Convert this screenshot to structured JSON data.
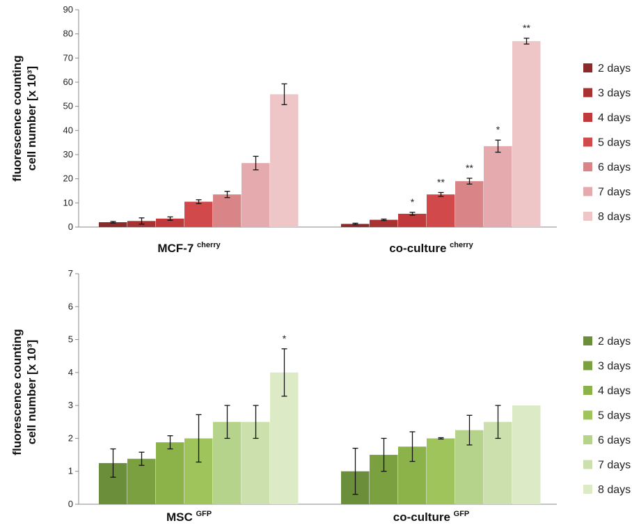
{
  "chart_data": [
    {
      "type": "bar",
      "ylabel_line1": "fluorescence counting",
      "ylabel_line2": "cell number [x 10³]",
      "ylim": [
        0,
        90
      ],
      "yticks": [
        "0",
        "10",
        "20",
        "30",
        "40",
        "50",
        "60",
        "70",
        "80",
        "90"
      ],
      "groups": [
        {
          "label": "MCF-7",
          "sup": "cherry"
        },
        {
          "label": "co-culture",
          "sup": "cherry"
        }
      ],
      "series": [
        {
          "name": "2 days",
          "color": "#8b2a2a",
          "values": [
            2.0,
            1.3
          ],
          "errors": [
            0.3,
            0.3
          ],
          "significance": [
            "",
            ""
          ]
        },
        {
          "name": "3 days",
          "color": "#a83232",
          "values": [
            2.5,
            3.0
          ],
          "errors": [
            1.3,
            0.3
          ],
          "significance": [
            "",
            ""
          ]
        },
        {
          "name": "4 days",
          "color": "#c0393b",
          "values": [
            3.5,
            5.5
          ],
          "errors": [
            0.7,
            0.6
          ],
          "significance": [
            "",
            "*"
          ]
        },
        {
          "name": "5 days",
          "color": "#d2494b",
          "values": [
            10.5,
            13.5
          ],
          "errors": [
            0.8,
            0.8
          ],
          "significance": [
            "",
            "**"
          ]
        },
        {
          "name": "6 days",
          "color": "#d98588",
          "values": [
            13.5,
            19.0
          ],
          "errors": [
            1.3,
            1.2
          ],
          "significance": [
            "",
            "**"
          ]
        },
        {
          "name": "7 days",
          "color": "#e4aaad",
          "values": [
            26.5,
            33.5
          ],
          "errors": [
            2.8,
            2.5
          ],
          "significance": [
            "",
            "*"
          ]
        },
        {
          "name": "8 days",
          "color": "#efc6c7",
          "values": [
            55.0,
            77.0
          ],
          "errors": [
            4.3,
            1.2
          ],
          "significance": [
            "",
            "**"
          ]
        }
      ],
      "grid": false,
      "legend_position": "right"
    },
    {
      "type": "bar",
      "ylabel_line1": "fluorescence counting",
      "ylabel_line2": "cell number [x 10³]",
      "ylim": [
        0,
        7
      ],
      "yticks": [
        "0",
        "1",
        "2",
        "3",
        "4",
        "5",
        "6",
        "7"
      ],
      "groups": [
        {
          "label": "MSC",
          "sup": "GFP"
        },
        {
          "label": "co-culture",
          "sup": "GFP"
        }
      ],
      "series": [
        {
          "name": "2 days",
          "color": "#6b8e3a",
          "values": [
            1.25,
            1.0
          ],
          "errors": [
            0.43,
            0.7
          ],
          "significance": [
            "",
            ""
          ]
        },
        {
          "name": "3 days",
          "color": "#7aa03f",
          "values": [
            1.38,
            1.5
          ],
          "errors": [
            0.2,
            0.5
          ],
          "significance": [
            "",
            ""
          ]
        },
        {
          "name": "4 days",
          "color": "#8cb34a",
          "values": [
            1.88,
            1.75
          ],
          "errors": [
            0.2,
            0.45
          ],
          "significance": [
            "",
            ""
          ]
        },
        {
          "name": "5 days",
          "color": "#a0c45c",
          "values": [
            2.0,
            2.0
          ],
          "errors": [
            0.72,
            0.02
          ],
          "significance": [
            "",
            ""
          ]
        },
        {
          "name": "6 days",
          "color": "#b5d38b",
          "values": [
            2.5,
            2.25
          ],
          "errors": [
            0.5,
            0.45
          ],
          "significance": [
            "",
            ""
          ]
        },
        {
          "name": "7 days",
          "color": "#cbe0ac",
          "values": [
            2.5,
            2.5
          ],
          "errors": [
            0.5,
            0.5
          ],
          "significance": [
            "",
            ""
          ]
        },
        {
          "name": "8 days",
          "color": "#dcebc6",
          "values": [
            4.0,
            3.0
          ],
          "errors": [
            0.72,
            0.0
          ],
          "significance": [
            "*",
            ""
          ]
        }
      ],
      "grid": false,
      "legend_position": "right"
    }
  ]
}
